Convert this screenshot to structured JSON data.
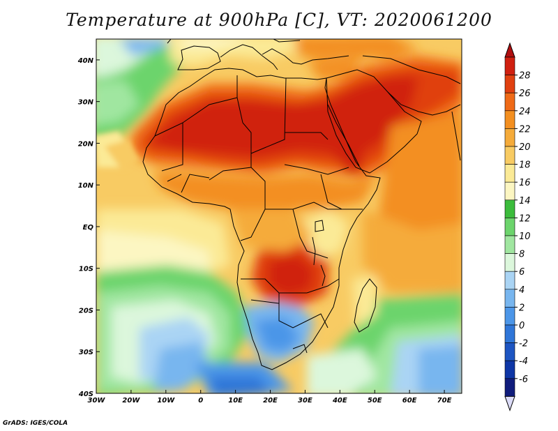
{
  "title": "Temperature at 900hPa [C], VT: 2020061200",
  "credit": "GrADS: IGES/COLA",
  "map": {
    "type": "filled-contour",
    "variable": "temperature",
    "level": "900hPa",
    "units": "C",
    "lon_range": [
      -30,
      75
    ],
    "lat_range": [
      -40,
      45
    ],
    "lon_tick_labels": [
      "30W",
      "20W",
      "10W",
      "0",
      "10E",
      "20E",
      "30E",
      "40E",
      "50E",
      "60E",
      "70E"
    ],
    "lat_tick_labels": [
      "40N",
      "30N",
      "20N",
      "10N",
      "EQ",
      "10S",
      "20S",
      "30S",
      "40S"
    ],
    "lon_ticks": [
      -30,
      -20,
      -10,
      0,
      10,
      20,
      30,
      40,
      50,
      60,
      70
    ],
    "lat_ticks": [
      40,
      30,
      20,
      10,
      0,
      -10,
      -20,
      -30,
      -40
    ]
  },
  "colorbar": {
    "levels": [
      "28",
      "26",
      "24",
      "22",
      "20",
      "18",
      "16",
      "14",
      "12",
      "10",
      "8",
      "6",
      "4",
      "2",
      "0",
      "-2",
      "-4",
      "-6"
    ],
    "colors": [
      "#d02010",
      "#e04010",
      "#ef6a17",
      "#f38f20",
      "#f5ab3a",
      "#f8cb63",
      "#fbea96",
      "#fcf6c2",
      "#3cbc3c",
      "#6cd46c",
      "#a0e6a0",
      "#dcf7dc",
      "#aad4f4",
      "#78b6ef",
      "#4c96e8",
      "#2f76d8",
      "#1d55c2",
      "#0e36a6",
      "#101c7c"
    ],
    "top_arrow_color": "#b00f10",
    "bottom_arrow_color": "#dcdcf8"
  },
  "palette": {
    "frame": "#000000",
    "coast": "#000000"
  }
}
